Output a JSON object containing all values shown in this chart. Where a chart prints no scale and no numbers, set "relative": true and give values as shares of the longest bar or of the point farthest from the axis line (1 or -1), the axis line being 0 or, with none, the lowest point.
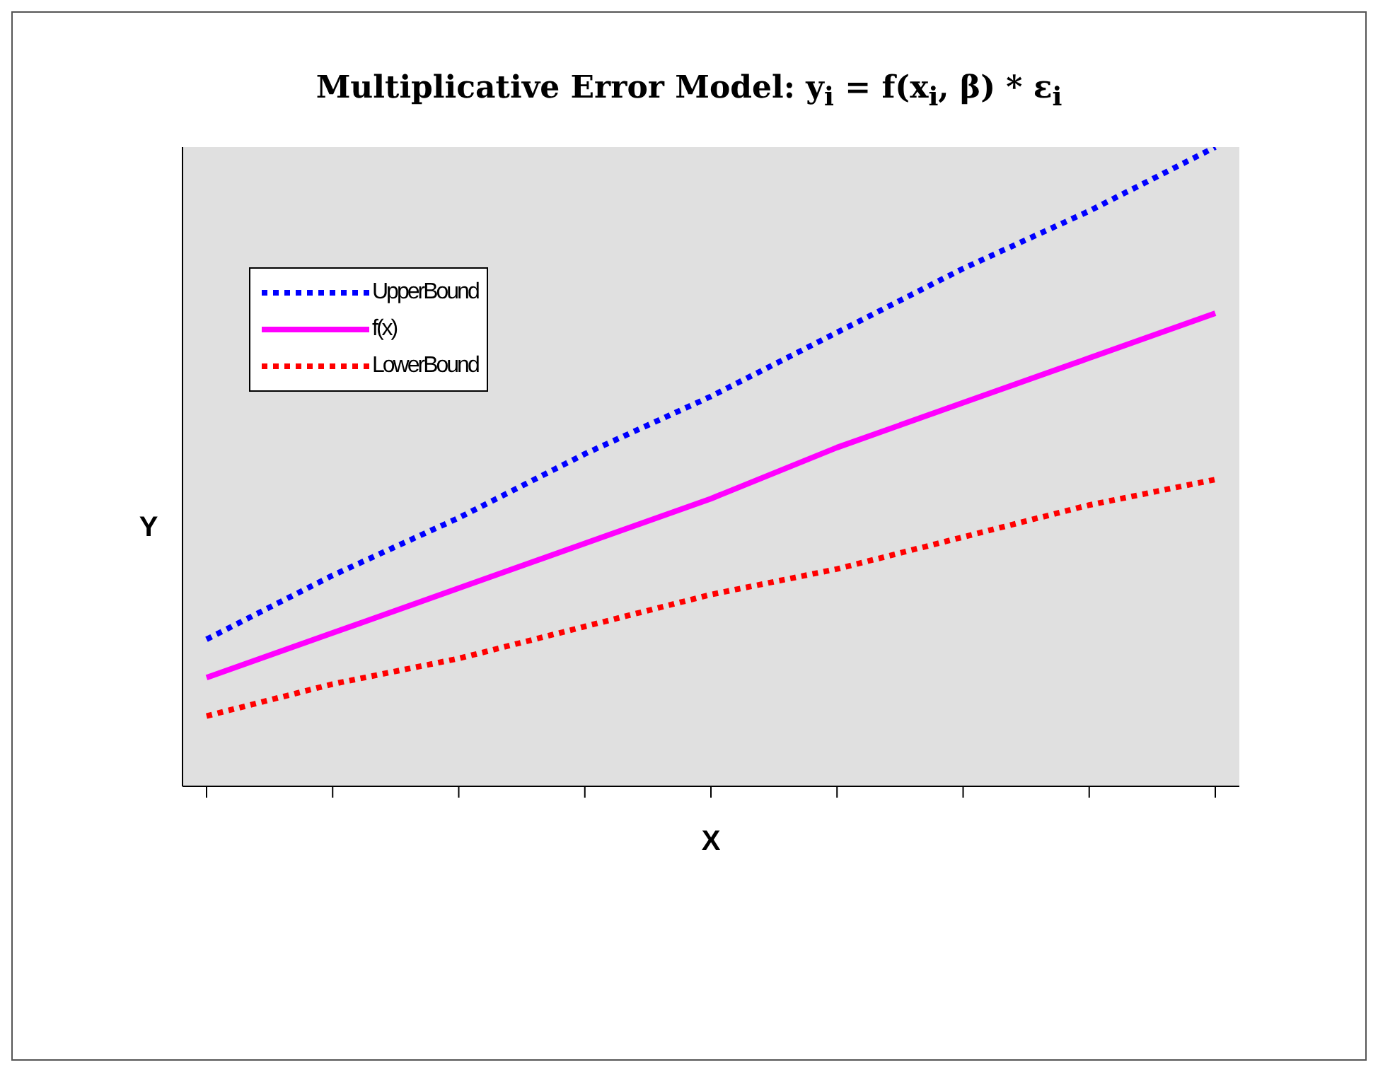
{
  "chart_data": {
    "type": "line",
    "title": "Multiplicative Error Model:  y$_{i}$ = f(x$_{i}$, β) * ε$_{i}$",
    "xlabel": "X",
    "ylabel": "Y",
    "relative": true,
    "legend": "top left",
    "grid": false,
    "marker": "none",
    "categories": [
      null,
      null,
      null,
      null,
      null,
      null,
      null,
      null,
      null
    ],
    "series": [
      {
        "name": "UpperBound",
        "color": "#0000ff",
        "line_style": "dotted",
        "values": [
          0.23,
          0.33,
          0.42,
          0.52,
          0.61,
          0.71,
          0.81,
          0.9,
          1
        ]
      },
      {
        "name": "f(x)",
        "color": "#ff00ff",
        "line_style": "solid",
        "values": [
          0.17,
          0.24,
          0.31,
          0.38,
          0.45,
          0.53,
          0.6,
          0.67,
          0.74
        ]
      },
      {
        "name": "LowerBound",
        "color": "#ff0000",
        "line_style": "dotted",
        "values": [
          0.11,
          0.16,
          0.2,
          0.25,
          0.3,
          0.34,
          0.39,
          0.44,
          0.48
        ]
      }
    ]
  }
}
